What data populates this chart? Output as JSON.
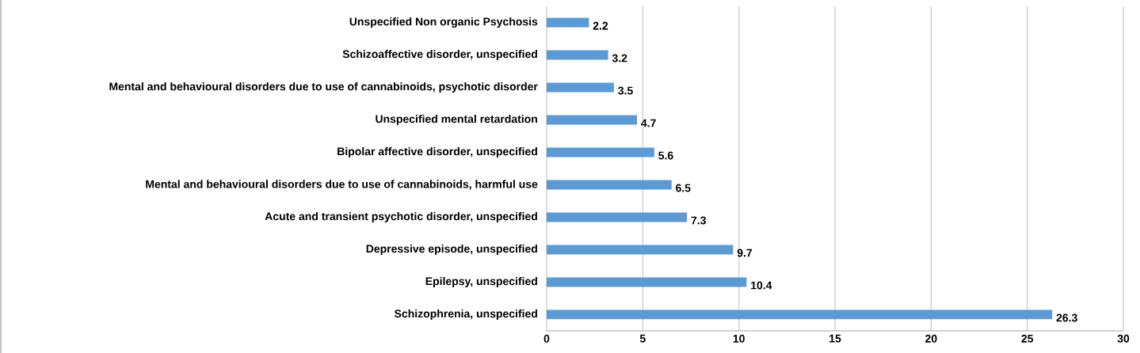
{
  "chart_data": {
    "type": "bar",
    "orientation": "horizontal",
    "categories": [
      "Unspecified Non organic Psychosis",
      "Schizoaffective disorder, unspecified",
      "Mental and behavioural disorders due to use of cannabinoids, psychotic disorder",
      "Unspecified mental retardation",
      "Bipolar affective disorder, unspecified",
      "Mental and behavioural disorders due to use of cannabinoids, harmful use",
      "Acute and transient psychotic disorder, unspecified",
      "Depressive episode, unspecified",
      "Epilepsy, unspecified",
      "Schizophrenia, unspecified"
    ],
    "values": [
      2.2,
      3.2,
      3.5,
      4.7,
      5.6,
      6.5,
      7.3,
      9.7,
      10.4,
      26.3
    ],
    "color": "#5b9bd5",
    "data_labels": true,
    "xlim": [
      0,
      30
    ],
    "xticks": [
      0,
      5,
      10,
      15,
      20,
      25,
      30
    ],
    "grid": "x"
  }
}
